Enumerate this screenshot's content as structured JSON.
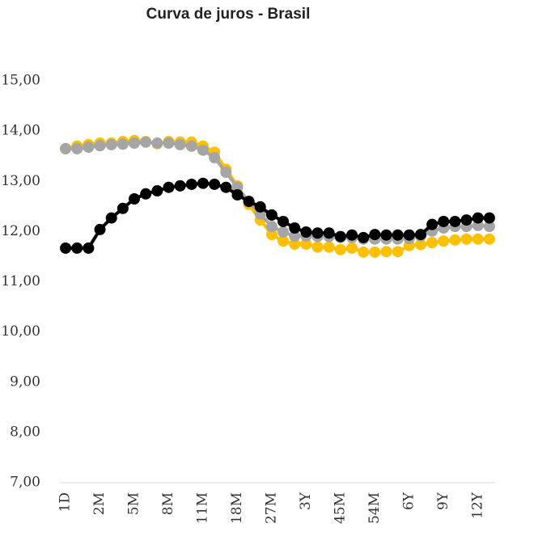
{
  "chart_data": {
    "type": "line",
    "title": "Curva de juros - Brasil",
    "categories": [
      "1D",
      null,
      null,
      "2M",
      null,
      null,
      "5M",
      null,
      null,
      "8M",
      null,
      null,
      "11M",
      null,
      null,
      "18M",
      null,
      null,
      "27M",
      null,
      null,
      "3Y",
      null,
      null,
      "45M",
      null,
      null,
      "54M",
      null,
      null,
      "6Y",
      null,
      null,
      "9Y",
      null,
      null,
      "12Y",
      null
    ],
    "series": [
      {
        "color": "#FFC000",
        "values": [
          13.65,
          13.7,
          13.73,
          13.76,
          13.76,
          13.79,
          13.81,
          13.79,
          13.75,
          13.79,
          13.78,
          13.78,
          13.7,
          13.58,
          13.24,
          12.91,
          12.54,
          12.23,
          11.94,
          11.81,
          11.75,
          11.75,
          11.69,
          11.69,
          11.64,
          11.67,
          11.59,
          11.59,
          11.6,
          11.6,
          11.72,
          11.74,
          11.78,
          11.81,
          11.83,
          11.85,
          11.85,
          11.85
        ]
      },
      {
        "color": "#A5A5A5",
        "values": [
          13.65,
          13.65,
          13.68,
          13.71,
          13.73,
          13.74,
          13.76,
          13.78,
          13.76,
          13.76,
          13.73,
          13.7,
          13.62,
          13.47,
          13.18,
          12.88,
          12.59,
          12.35,
          12.1,
          11.99,
          11.91,
          11.91,
          11.9,
          11.9,
          11.88,
          11.88,
          11.85,
          11.85,
          11.85,
          11.85,
          11.86,
          11.91,
          12.01,
          12.07,
          12.1,
          12.1,
          12.12,
          12.1
        ]
      },
      {
        "color": "#000000",
        "values": [
          11.67,
          11.67,
          11.67,
          12.04,
          12.27,
          12.46,
          12.65,
          12.75,
          12.81,
          12.88,
          12.91,
          12.94,
          12.96,
          12.94,
          12.88,
          12.73,
          12.6,
          12.49,
          12.33,
          12.2,
          12.07,
          11.99,
          11.97,
          11.97,
          11.9,
          11.93,
          11.88,
          11.94,
          11.93,
          11.93,
          11.93,
          11.94,
          12.14,
          12.2,
          12.2,
          12.23,
          12.27,
          12.27
        ]
      }
    ],
    "ylim": [
      7,
      15
    ],
    "yticks": [
      {
        "value": 7,
        "label": "7,00"
      },
      {
        "value": 8,
        "label": "8,00"
      },
      {
        "value": 9,
        "label": "9,00"
      },
      {
        "value": 10,
        "label": "10,00"
      },
      {
        "value": 11,
        "label": "11,00"
      },
      {
        "value": 12,
        "label": "12,00"
      },
      {
        "value": 13,
        "label": "13,00"
      },
      {
        "value": 14,
        "label": "14,00"
      },
      {
        "value": 15,
        "label": "15,00"
      }
    ],
    "grid": false
  }
}
